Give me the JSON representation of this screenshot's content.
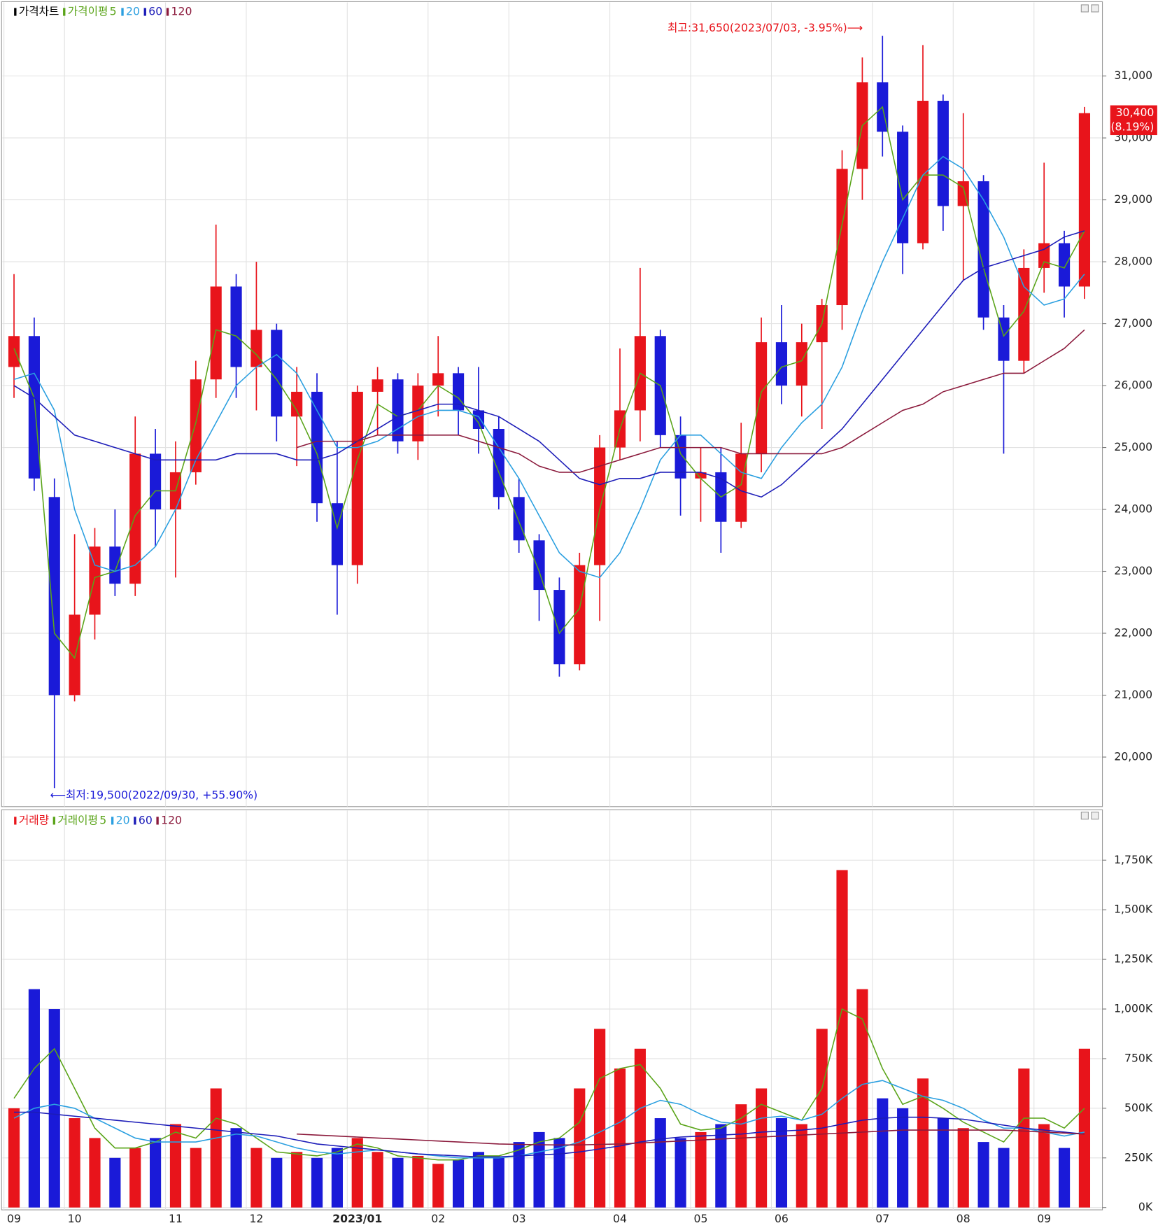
{
  "chart_data": [
    {
      "type": "candlestick",
      "title": "가격차트",
      "legend_title": "가격이평",
      "up_color": "#e8141b",
      "down_color": "#1a1ad8",
      "open": [
        26300,
        26800,
        24200,
        21000,
        22300,
        23400,
        22800,
        24900,
        24000,
        24600,
        26100,
        27600,
        26300,
        26900,
        25500,
        25900,
        24100,
        23100,
        25900,
        26100,
        25100,
        26000,
        26200,
        25600,
        25300,
        24200,
        23500,
        22700,
        21500,
        23100,
        25000,
        25600,
        26800,
        25200,
        24500,
        24600,
        23800,
        24900,
        26700,
        26000,
        26700,
        27300,
        29500,
        30900,
        30100,
        28300,
        30600,
        28900,
        29300,
        27100,
        26400,
        27900,
        28300,
        27600
      ],
      "high": [
        27800,
        27100,
        24500,
        23600,
        23700,
        24000,
        25500,
        25300,
        25100,
        26400,
        28600,
        27800,
        28000,
        27000,
        26300,
        26200,
        25100,
        26000,
        26300,
        26200,
        26200,
        26800,
        26300,
        26300,
        25500,
        24500,
        23600,
        22900,
        23300,
        25200,
        26600,
        27900,
        26900,
        25500,
        25000,
        25000,
        25400,
        27100,
        27300,
        27000,
        27400,
        29800,
        31300,
        31650,
        30200,
        31500,
        30700,
        30400,
        29400,
        27300,
        28200,
        29600,
        28500,
        30500
      ],
      "low": [
        25800,
        24300,
        19500,
        20900,
        21900,
        22600,
        22600,
        23400,
        22900,
        24400,
        25800,
        25800,
        25600,
        25100,
        24700,
        23800,
        22300,
        22800,
        25200,
        24900,
        24800,
        25500,
        25200,
        24900,
        24000,
        23300,
        22200,
        21300,
        21400,
        22200,
        24800,
        25100,
        25000,
        23900,
        23800,
        23300,
        23700,
        24600,
        25700,
        25500,
        25300,
        26900,
        29000,
        29700,
        27800,
        28200,
        28500,
        27700,
        26900,
        24900,
        26200,
        27500,
        27100,
        27400
      ],
      "close": [
        26800,
        24500,
        21000,
        22300,
        23400,
        22800,
        24900,
        24000,
        24600,
        26100,
        27600,
        26300,
        26900,
        25500,
        25900,
        24100,
        23100,
        25900,
        26100,
        25100,
        26000,
        26200,
        25600,
        25300,
        24200,
        23500,
        22700,
        21500,
        23100,
        25000,
        25600,
        26800,
        25200,
        24500,
        24600,
        23800,
        24900,
        26700,
        26000,
        26700,
        27300,
        29500,
        30900,
        30100,
        28300,
        30600,
        28900,
        29300,
        27100,
        26400,
        27900,
        28300,
        27600,
        30400
      ],
      "series": [
        {
          "name": "5",
          "color": "#5aa419",
          "values": [
            26600,
            25800,
            22000,
            21600,
            22900,
            23000,
            23900,
            24300,
            24300,
            25400,
            26900,
            26800,
            26500,
            26100,
            25600,
            24900,
            23700,
            24800,
            25700,
            25500,
            25600,
            26000,
            25800,
            25400,
            24600,
            23800,
            23000,
            22000,
            22400,
            24000,
            25300,
            26200,
            26000,
            24900,
            24500,
            24200,
            24400,
            25900,
            26300,
            26400,
            27000,
            28600,
            30200,
            30500,
            29000,
            29400,
            29400,
            29200,
            27900,
            26800,
            27200,
            28000,
            27900,
            28500
          ]
        },
        {
          "name": "20",
          "color": "#2a9fe0",
          "values": [
            26100,
            26200,
            25600,
            24000,
            23100,
            23000,
            23100,
            23400,
            24000,
            24800,
            25400,
            26000,
            26300,
            26500,
            26200,
            25600,
            25000,
            25000,
            25100,
            25300,
            25500,
            25600,
            25600,
            25500,
            25000,
            24500,
            23900,
            23300,
            23000,
            22900,
            23300,
            24000,
            24800,
            25200,
            25200,
            24900,
            24600,
            24500,
            25000,
            25400,
            25700,
            26300,
            27200,
            28000,
            28700,
            29400,
            29700,
            29500,
            29000,
            28400,
            27600,
            27300,
            27400,
            27800
          ]
        },
        {
          "name": "60",
          "color": "#1c1cb8",
          "values": [
            26000,
            25800,
            25500,
            25200,
            25100,
            25000,
            24900,
            24800,
            24800,
            24800,
            24800,
            24900,
            24900,
            24900,
            24800,
            24800,
            24900,
            25100,
            25300,
            25500,
            25600,
            25700,
            25700,
            25600,
            25500,
            25300,
            25100,
            24800,
            24500,
            24400,
            24500,
            24500,
            24600,
            24600,
            24600,
            24500,
            24300,
            24200,
            24400,
            24700,
            25000,
            25300,
            25700,
            26100,
            26500,
            26900,
            27300,
            27700,
            27900,
            28000,
            28100,
            28200,
            28400,
            28500
          ]
        },
        {
          "name": "120",
          "color": "#8b1a3c",
          "values": [
            null,
            null,
            null,
            null,
            null,
            null,
            null,
            null,
            null,
            null,
            null,
            null,
            null,
            null,
            25000,
            25100,
            25100,
            25100,
            25200,
            25200,
            25200,
            25200,
            25200,
            25100,
            25000,
            24900,
            24700,
            24600,
            24600,
            24700,
            24800,
            24900,
            25000,
            25000,
            25000,
            25000,
            24900,
            24900,
            24900,
            24900,
            24900,
            25000,
            25200,
            25400,
            25600,
            25700,
            25900,
            26000,
            26100,
            26200,
            26200,
            26400,
            26600,
            26900
          ]
        }
      ],
      "ylim": [
        19200,
        32200
      ],
      "yticks": [
        {
          "value": 20000,
          "label": "20,000"
        },
        {
          "value": 21000,
          "label": "21,000"
        },
        {
          "value": 22000,
          "label": "22,000"
        },
        {
          "value": 23000,
          "label": "23,000"
        },
        {
          "value": 24000,
          "label": "24,000"
        },
        {
          "value": 25000,
          "label": "25,000"
        },
        {
          "value": 26000,
          "label": "26,000"
        },
        {
          "value": 27000,
          "label": "27,000"
        },
        {
          "value": 28000,
          "label": "28,000"
        },
        {
          "value": 29000,
          "label": "29,000"
        },
        {
          "value": 30000,
          "label": "30,000"
        },
        {
          "value": 31000,
          "label": "31,000"
        }
      ],
      "grid": true,
      "annotations": [
        "최고:31,650(2023/07/03, -3.95%)⟶",
        "⟵최저:19,500(2022/09/30, +55.90%)"
      ],
      "last_price": {
        "value": 30400,
        "label": "30,400"
      },
      "last_change": "(8.19%)"
    },
    {
      "type": "bar",
      "title": "거래량",
      "legend_title": "거래이평",
      "categories": [
        "09",
        null,
        null,
        "10",
        null,
        null,
        null,
        null,
        "11",
        null,
        null,
        null,
        "12",
        null,
        null,
        null,
        null,
        "2023/01",
        null,
        null,
        null,
        "02",
        null,
        null,
        null,
        "03",
        null,
        null,
        null,
        null,
        "04",
        null,
        null,
        null,
        "05",
        null,
        null,
        null,
        "06",
        null,
        null,
        null,
        null,
        "07",
        null,
        null,
        null,
        "08",
        null,
        null,
        null,
        "09",
        null,
        null
      ],
      "values": [
        500,
        1100,
        1000,
        450,
        350,
        250,
        300,
        350,
        420,
        300,
        600,
        400,
        300,
        250,
        280,
        250,
        300,
        350,
        280,
        250,
        260,
        220,
        240,
        280,
        250,
        330,
        380,
        350,
        600,
        900,
        700,
        800,
        450,
        350,
        380,
        420,
        520,
        600,
        450,
        420,
        900,
        1700,
        1100,
        550,
        500,
        650,
        450,
        400,
        330,
        300,
        700,
        420,
        300,
        800
      ],
      "series": [
        {
          "name": "5",
          "color": "#5aa419",
          "values": [
            550,
            700,
            800,
            600,
            400,
            300,
            300,
            330,
            380,
            350,
            450,
            420,
            350,
            280,
            270,
            260,
            280,
            320,
            300,
            260,
            250,
            240,
            240,
            260,
            260,
            290,
            330,
            350,
            430,
            650,
            700,
            720,
            600,
            420,
            390,
            400,
            450,
            520,
            480,
            440,
            600,
            1000,
            950,
            700,
            520,
            560,
            500,
            430,
            380,
            330,
            450,
            450,
            400,
            500
          ]
        },
        {
          "name": "20",
          "color": "#2a9fe0",
          "values": [
            450,
            500,
            520,
            500,
            450,
            400,
            350,
            330,
            330,
            330,
            350,
            370,
            360,
            330,
            300,
            280,
            270,
            280,
            290,
            280,
            270,
            260,
            250,
            250,
            250,
            260,
            280,
            300,
            330,
            380,
            430,
            500,
            540,
            520,
            470,
            430,
            420,
            450,
            460,
            440,
            470,
            550,
            620,
            640,
            600,
            560,
            540,
            500,
            440,
            400,
            400,
            380,
            360,
            380
          ]
        },
        {
          "name": "60",
          "color": "#1c1cb8",
          "values": [
            480,
            480,
            470,
            460,
            450,
            440,
            430,
            420,
            410,
            400,
            390,
            380,
            370,
            360,
            340,
            320,
            310,
            300,
            290,
            280,
            270,
            265,
            260,
            255,
            255,
            260,
            265,
            270,
            280,
            295,
            310,
            330,
            345,
            355,
            360,
            365,
            370,
            380,
            385,
            390,
            400,
            420,
            440,
            450,
            455,
            455,
            450,
            445,
            430,
            415,
            400,
            390,
            380,
            370
          ]
        },
        {
          "name": "120",
          "color": "#8b1a3c",
          "values": [
            null,
            null,
            null,
            null,
            null,
            null,
            null,
            null,
            null,
            null,
            null,
            null,
            null,
            null,
            370,
            365,
            360,
            355,
            350,
            345,
            340,
            335,
            330,
            325,
            320,
            318,
            316,
            315,
            315,
            318,
            320,
            325,
            330,
            335,
            340,
            345,
            350,
            355,
            360,
            365,
            370,
            375,
            380,
            385,
            390,
            390,
            390,
            390,
            390,
            390,
            385,
            380,
            375,
            370
          ]
        }
      ],
      "ylim": [
        0,
        2000
      ],
      "yticks": [
        {
          "value": 0,
          "label": "0K"
        },
        {
          "value": 250,
          "label": "250K"
        },
        {
          "value": 500,
          "label": "500K"
        },
        {
          "value": 750,
          "label": "750K"
        },
        {
          "value": 1000,
          "label": "1,000K"
        },
        {
          "value": 1250,
          "label": "1,250K"
        },
        {
          "value": 1500,
          "label": "1,500K"
        },
        {
          "value": 1750,
          "label": "1,750K"
        }
      ],
      "grid": true
    }
  ]
}
